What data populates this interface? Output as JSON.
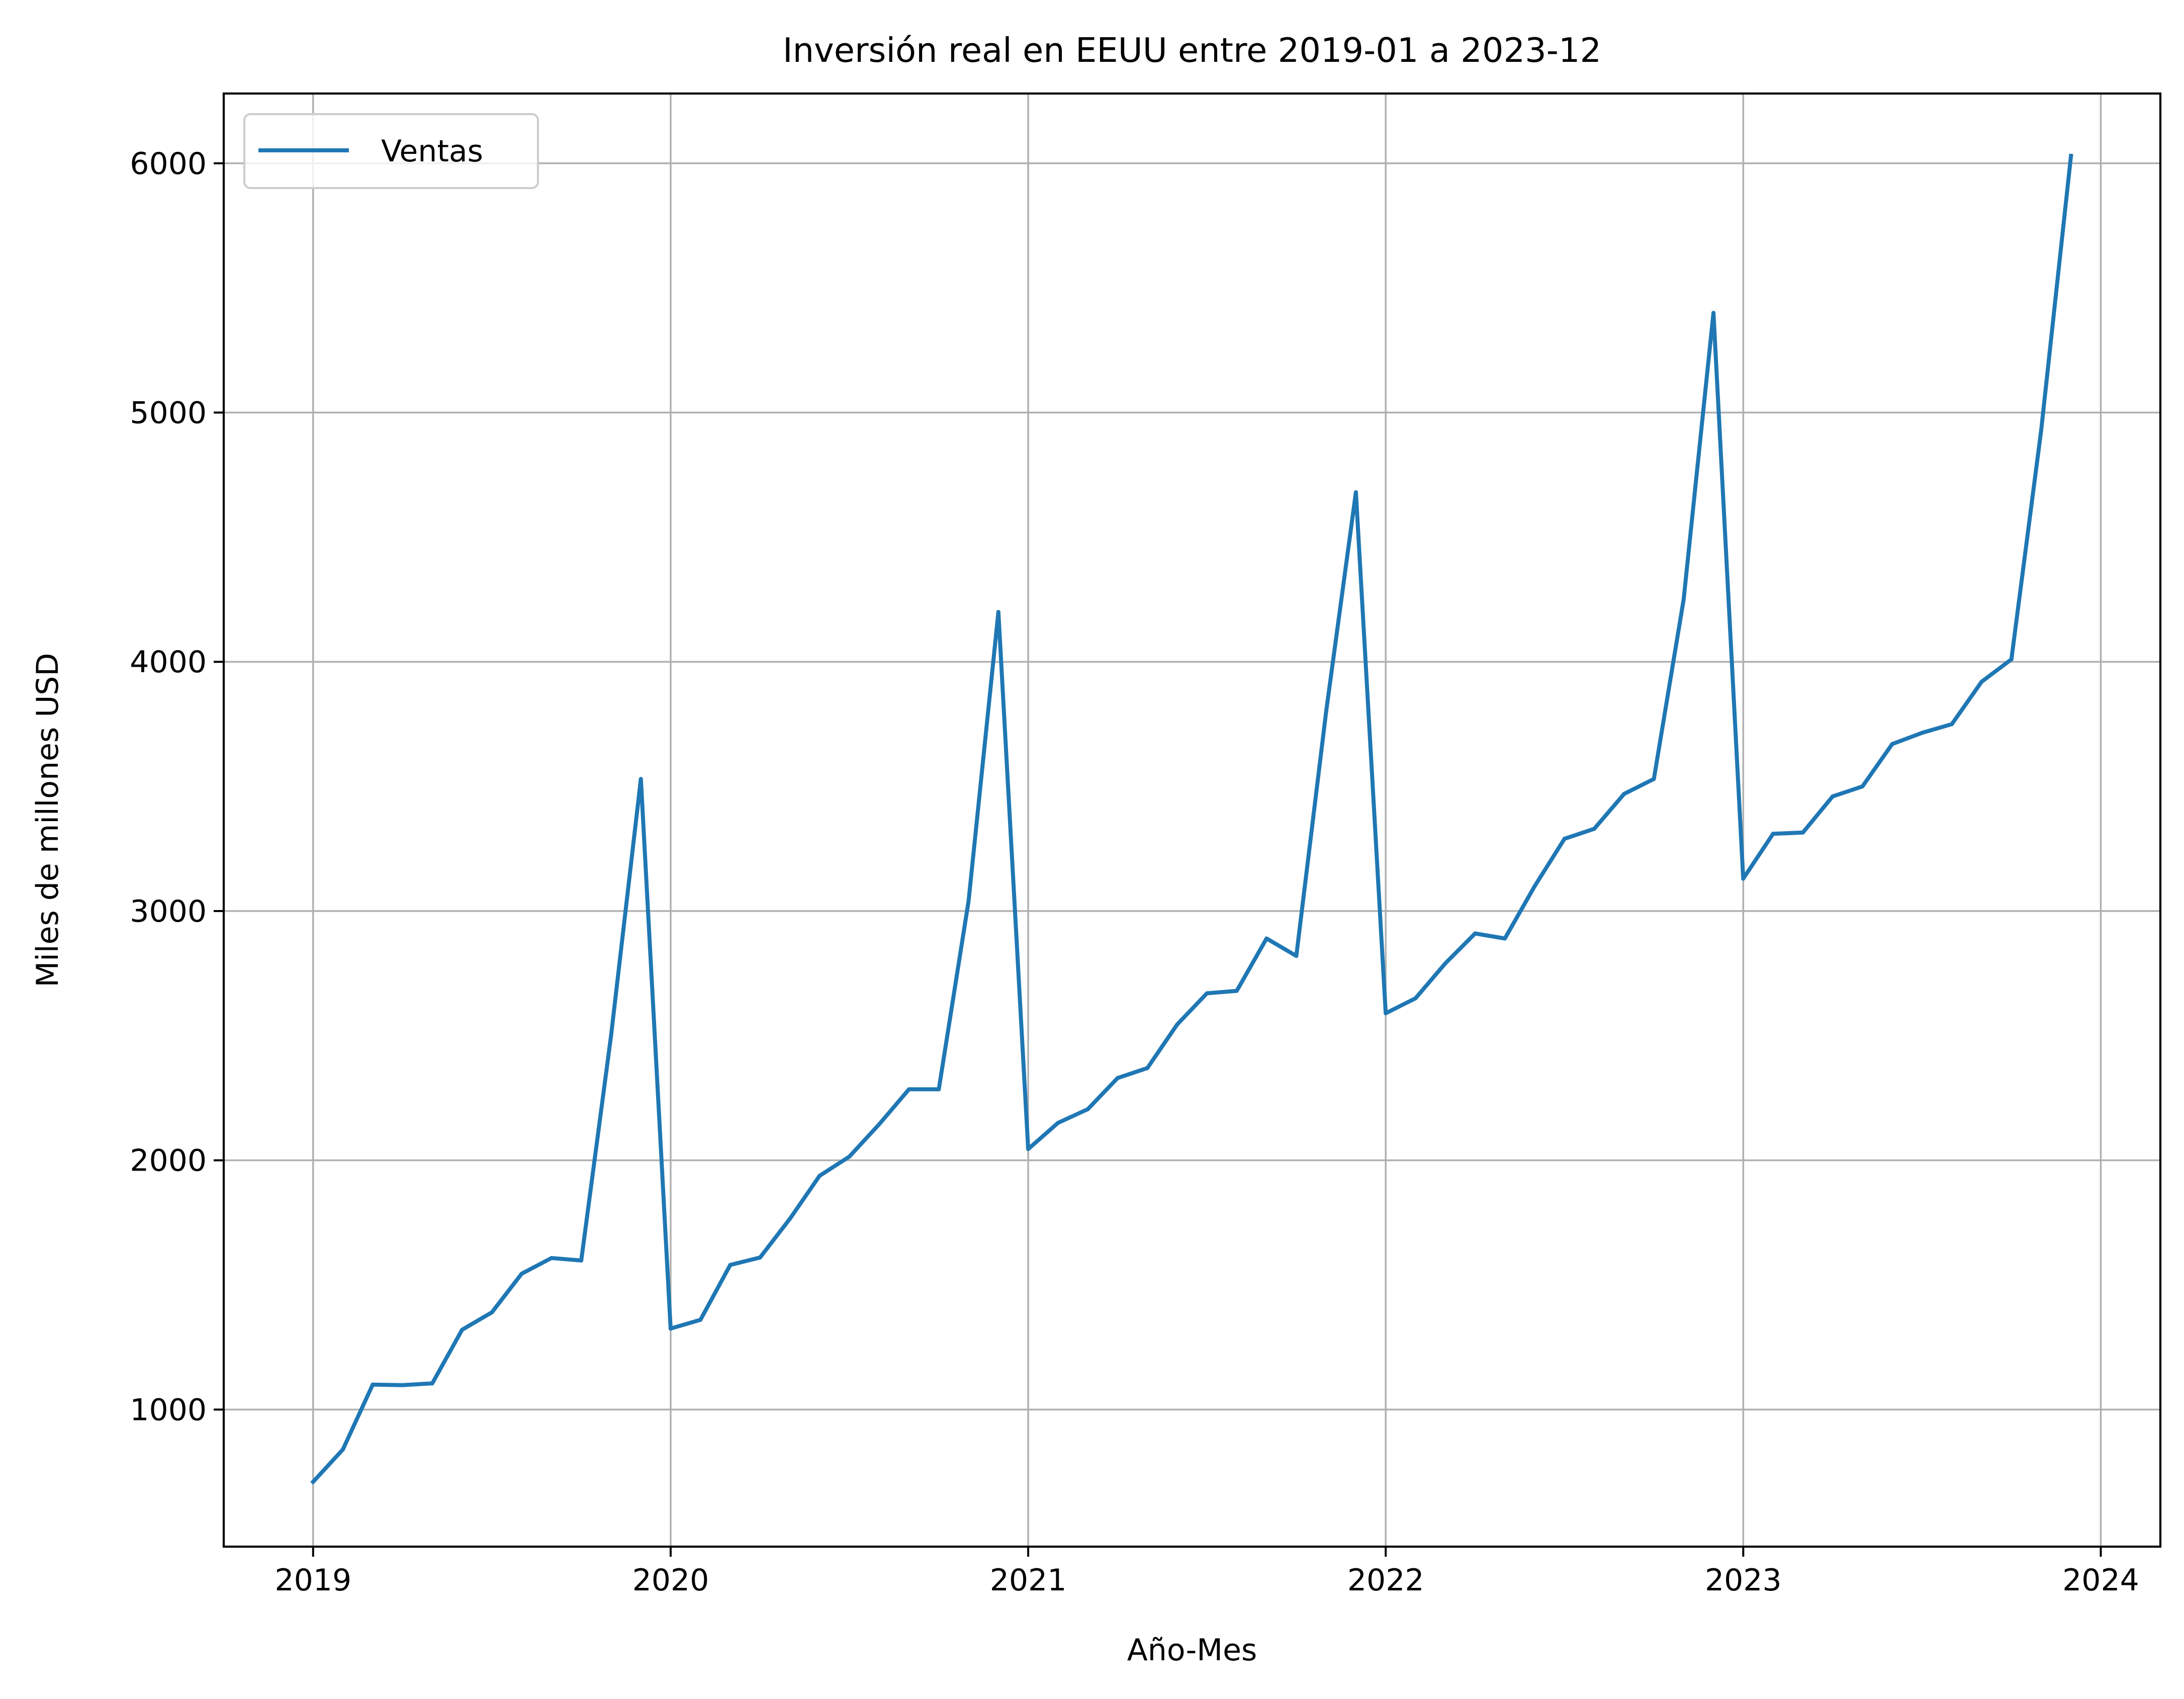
{
  "chart_data": {
    "type": "line",
    "title": "Inversión real en EEUU entre 2019-01 a 2023-12",
    "xlabel": "Año-Mes",
    "ylabel": "Miles de millones USD",
    "x_range": [
      "2018-10",
      "2024-03"
    ],
    "ylim": [
      450,
      6280
    ],
    "grid": true,
    "legend_position": "top-left",
    "x_ticks": [
      "2019",
      "2020",
      "2021",
      "2022",
      "2023",
      "2024"
    ],
    "y_ticks": [
      "1000",
      "2000",
      "3000",
      "4000",
      "5000",
      "6000"
    ],
    "series": [
      {
        "name": "Ventas",
        "color": "#1f77b4",
        "x": [
          "2019-01",
          "2019-02",
          "2019-03",
          "2019-04",
          "2019-05",
          "2019-06",
          "2019-07",
          "2019-08",
          "2019-09",
          "2019-10",
          "2019-11",
          "2019-12",
          "2020-01",
          "2020-02",
          "2020-03",
          "2020-04",
          "2020-05",
          "2020-06",
          "2020-07",
          "2020-08",
          "2020-09",
          "2020-10",
          "2020-11",
          "2020-12",
          "2021-01",
          "2021-02",
          "2021-03",
          "2021-04",
          "2021-05",
          "2021-06",
          "2021-07",
          "2021-08",
          "2021-09",
          "2021-10",
          "2021-11",
          "2021-12",
          "2022-01",
          "2022-02",
          "2022-03",
          "2022-04",
          "2022-05",
          "2022-06",
          "2022-07",
          "2022-08",
          "2022-09",
          "2022-10",
          "2022-11",
          "2022-12",
          "2023-01",
          "2023-02",
          "2023-03",
          "2023-04",
          "2023-05",
          "2023-06",
          "2023-07",
          "2023-08",
          "2023-09",
          "2023-10",
          "2023-11",
          "2023-12"
        ],
        "values": [
          710,
          840,
          1100,
          1098,
          1105,
          1320,
          1390,
          1545,
          1608,
          1598,
          2500,
          3530,
          1325,
          1360,
          1580,
          1610,
          1765,
          1938,
          2015,
          2145,
          2285,
          2285,
          3040,
          4200,
          2045,
          2150,
          2205,
          2330,
          2370,
          2545,
          2670,
          2680,
          2890,
          2820,
          3800,
          4680,
          2590,
          2650,
          2790,
          2910,
          2890,
          3100,
          3290,
          3330,
          3470,
          3530,
          4250,
          5400,
          3130,
          3310,
          3315,
          3460,
          3500,
          3670,
          3715,
          3750,
          3920,
          4010,
          4930,
          6030
        ]
      }
    ]
  }
}
